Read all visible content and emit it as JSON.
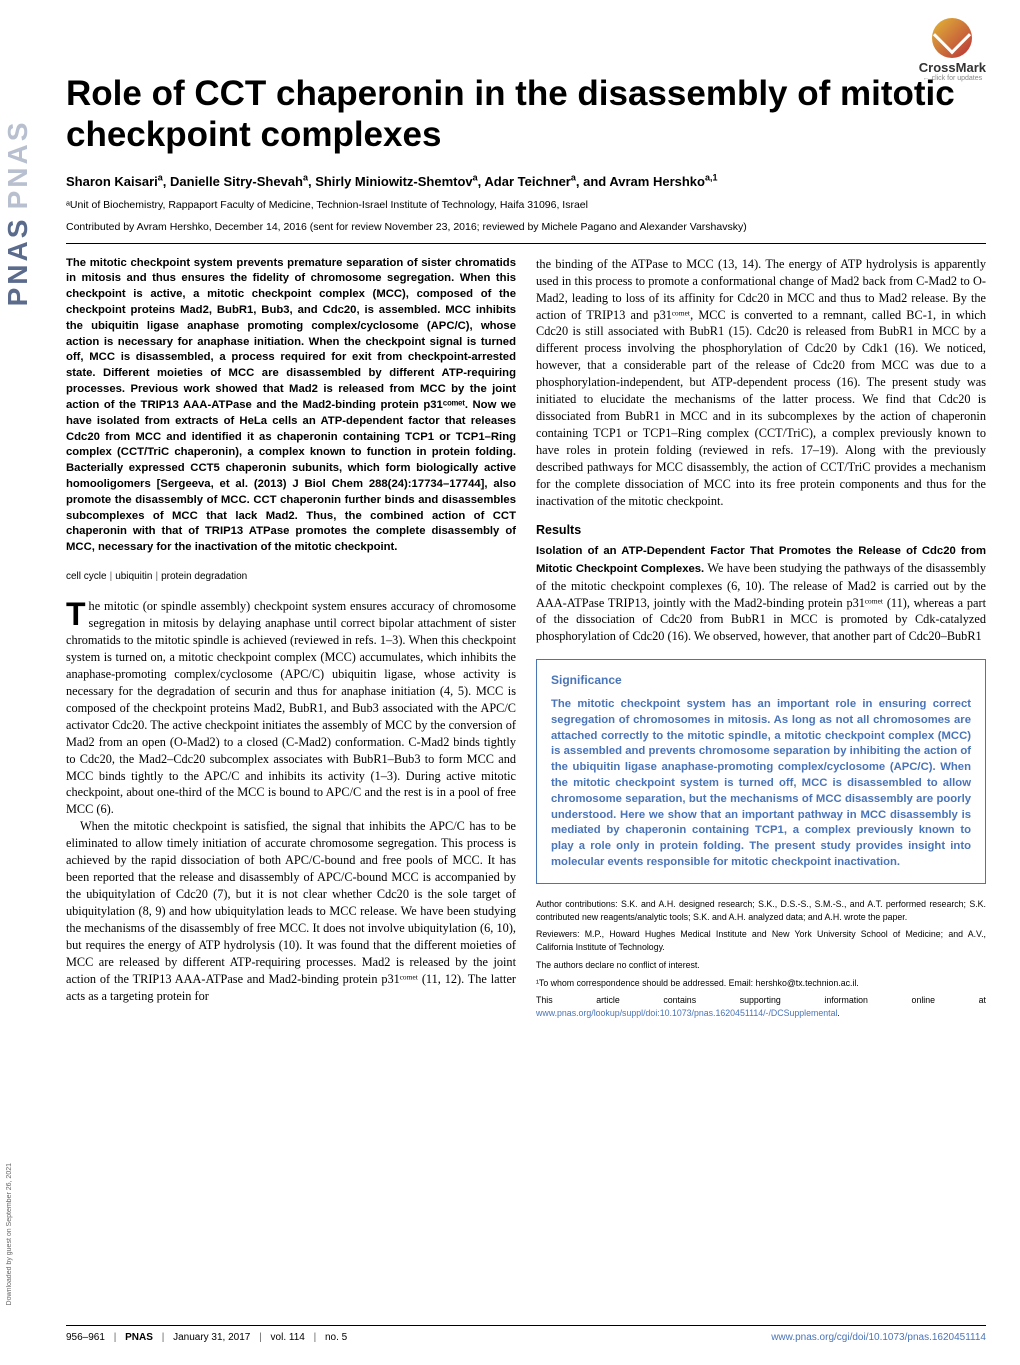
{
  "journal": {
    "logo_text": "PNAS",
    "logo_shadow": "PNAS",
    "crossmark_label": "CrossMark",
    "crossmark_sub": "← click for updates"
  },
  "downloaded_note": "Downloaded by guest on September 26, 2021",
  "title": "Role of CCT chaperonin in the disassembly of mitotic checkpoint complexes",
  "authors_html": "Sharon Kaisari<sup>a</sup>, Danielle Sitry-Shevah<sup>a</sup>, Shirly Miniowitz-Shemtov<sup>a</sup>, Adar Teichner<sup>a</sup>, and Avram Hershko<sup>a,1</sup>",
  "affiliation": "ᵃUnit of Biochemistry, Rappaport Faculty of Medicine, Technion-Israel Institute of Technology, Haifa 31096, Israel",
  "contributed": "Contributed by Avram Hershko, December 14, 2016 (sent for review November 23, 2016; reviewed by Michele Pagano and Alexander Varshavsky)",
  "abstract": "The mitotic checkpoint system prevents premature separation of sister chromatids in mitosis and thus ensures the fidelity of chromosome segregation. When this checkpoint is active, a mitotic checkpoint complex (MCC), composed of the checkpoint proteins Mad2, BubR1, Bub3, and Cdc20, is assembled. MCC inhibits the ubiquitin ligase anaphase promoting complex/cyclosome (APC/C), whose action is necessary for anaphase initiation. When the checkpoint signal is turned off, MCC is disassembled, a process required for exit from checkpoint-arrested state. Different moieties of MCC are disassembled by different ATP-requiring processes. Previous work showed that Mad2 is released from MCC by the joint action of the TRIP13 AAA-ATPase and the Mad2-binding protein p31ᶜᵒᵐᵉᵗ. Now we have isolated from extracts of HeLa cells an ATP-dependent factor that releases Cdc20 from MCC and identified it as chaperonin containing TCP1 or TCP1–Ring complex (CCT/TriC chaperonin), a complex known to function in protein folding. Bacterially expressed CCT5 chaperonin subunits, which form biologically active homooligomers [Sergeeva, et al. (2013) J Biol Chem 288(24):17734–17744], also promote the disassembly of MCC. CCT chaperonin further binds and disassembles subcomplexes of MCC that lack Mad2. Thus, the combined action of CCT chaperonin with that of TRIP13 ATPase promotes the complete disassembly of MCC, necessary for the inactivation of the mitotic checkpoint.",
  "keywords": [
    "cell cycle",
    "ubiquitin",
    "protein degradation"
  ],
  "col1_body": {
    "p1": "he mitotic (or spindle assembly) checkpoint system ensures accuracy of chromosome segregation in mitosis by delaying anaphase until correct bipolar attachment of sister chromatids to the mitotic spindle is achieved (reviewed in refs. 1–3). When this checkpoint system is turned on, a mitotic checkpoint complex (MCC) accumulates, which inhibits the anaphase-promoting complex/cyclosome (APC/C) ubiquitin ligase, whose activity is necessary for the degradation of securin and thus for anaphase initiation (4, 5). MCC is composed of the checkpoint proteins Mad2, BubR1, and Bub3 associated with the APC/C activator Cdc20. The active checkpoint initiates the assembly of MCC by the conversion of Mad2 from an open (O-Mad2) to a closed (C-Mad2) conformation. C-Mad2 binds tightly to Cdc20, the Mad2–Cdc20 subcomplex associates with BubR1–Bub3 to form MCC and MCC binds tightly to the APC/C and inhibits its activity (1–3). During active mitotic checkpoint, about one-third of the MCC is bound to APC/C and the rest is in a pool of free MCC (6).",
    "p2": "When the mitotic checkpoint is satisfied, the signal that inhibits the APC/C has to be eliminated to allow timely initiation of accurate chromosome segregation. This process is achieved by the rapid dissociation of both APC/C-bound and free pools of MCC. It has been reported that the release and disassembly of APC/C-bound MCC is accompanied by the ubiquitylation of Cdc20 (7), but it is not clear whether Cdc20 is the sole target of ubiquitylation (8, 9) and how ubiquitylation leads to MCC release. We have been studying the mechanisms of the disassembly of free MCC. It does not involve ubiquitylation (6, 10), but requires the energy of ATP hydrolysis (10). It was found that the different moieties of MCC are released by different ATP-requiring processes. Mad2 is released by the joint action of the TRIP13 AAA-ATPase and Mad2-binding protein p31ᶜᵒᵐᵉᵗ (11, 12). The latter acts as a targeting protein for"
  },
  "col2_body": {
    "p1": "the binding of the ATPase to MCC (13, 14). The energy of ATP hydrolysis is apparently used in this process to promote a conformational change of Mad2 back from C-Mad2 to O-Mad2, leading to loss of its affinity for Cdc20 in MCC and thus to Mad2 release. By the action of TRIP13 and p31ᶜᵒᵐᵉᵗ, MCC is converted to a remnant, called BC-1, in which Cdc20 is still associated with BubR1 (15). Cdc20 is released from BubR1 in MCC by a different process involving the phosphorylation of Cdc20 by Cdk1 (16). We noticed, however, that a considerable part of the release of Cdc20 from MCC was due to a phosphorylation-independent, but ATP-dependent process (16). The present study was initiated to elucidate the mechanisms of the latter process. We find that Cdc20 is dissociated from BubR1 in MCC and in its subcomplexes by the action of chaperonin containing TCP1 or TCP1–Ring complex (CCT/TriC), a complex previously known to have roles in protein folding (reviewed in refs. 17–19). Along with the previously described pathways for MCC disassembly, the action of CCT/TriC provides a mechanism for the complete dissociation of MCC into its free protein components and thus for the inactivation of the mitotic checkpoint."
  },
  "results_head": "Results",
  "results_sub": "Isolation of an ATP-Dependent Factor That Promotes the Release of Cdc20 from Mitotic Checkpoint Complexes.",
  "results_body": " We have been studying the pathways of the disassembly of the mitotic checkpoint complexes (6, 10). The release of Mad2 is carried out by the AAA-ATPase TRIP13, jointly with the Mad2-binding protein p31ᶜᵒᵐᵉᵗ (11), whereas a part of the dissociation of Cdc20 from BubR1 in MCC is promoted by Cdk-catalyzed phosphorylation of Cdc20 (16). We observed, however, that another part of Cdc20–BubR1",
  "significance": {
    "title": "Significance",
    "body": "The mitotic checkpoint system has an important role in ensuring correct segregation of chromosomes in mitosis. As long as not all chromosomes are attached correctly to the mitotic spindle, a mitotic checkpoint complex (MCC) is assembled and prevents chromosome separation by inhibiting the action of the ubiquitin ligase anaphase-promoting complex/cyclosome (APC/C). When the mitotic checkpoint system is turned off, MCC is disassembled to allow chromosome separation, but the mechanisms of MCC disassembly are poorly understood. Here we show that an important pathway in MCC disassembly is mediated by chaperonin containing TCP1, a complex previously known to play a role only in protein folding. The present study provides insight into molecular events responsible for mitotic checkpoint inactivation."
  },
  "footnotes": {
    "author_contrib": "Author contributions: S.K. and A.H. designed research; S.K., D.S.-S., S.M.-S., and A.T. performed research; S.K. contributed new reagents/analytic tools; S.K. and A.H. analyzed data; and A.H. wrote the paper.",
    "reviewers": "Reviewers: M.P., Howard Hughes Medical Institute and New York University School of Medicine; and A.V., California Institute of Technology.",
    "conflict": "The authors declare no conflict of interest.",
    "correspondence": "¹To whom correspondence should be addressed. Email: hershko@tx.technion.ac.il.",
    "supplement_pre": "This article contains supporting information online at ",
    "supplement_link": "www.pnas.org/lookup/suppl/doi:10.1073/pnas.1620451114/-/DCSupplemental",
    "supplement_post": "."
  },
  "footer": {
    "pages": "956–961",
    "journal": "PNAS",
    "date": "January 31, 2017",
    "vol": "vol. 114",
    "no": "no. 5",
    "doi": "www.pnas.org/cgi/doi/10.1073/pnas.1620451114"
  },
  "colors": {
    "accent_blue": "#4a74b8",
    "logo_blue": "#5b6b8c",
    "logo_shadow": "#b8c0d0"
  }
}
